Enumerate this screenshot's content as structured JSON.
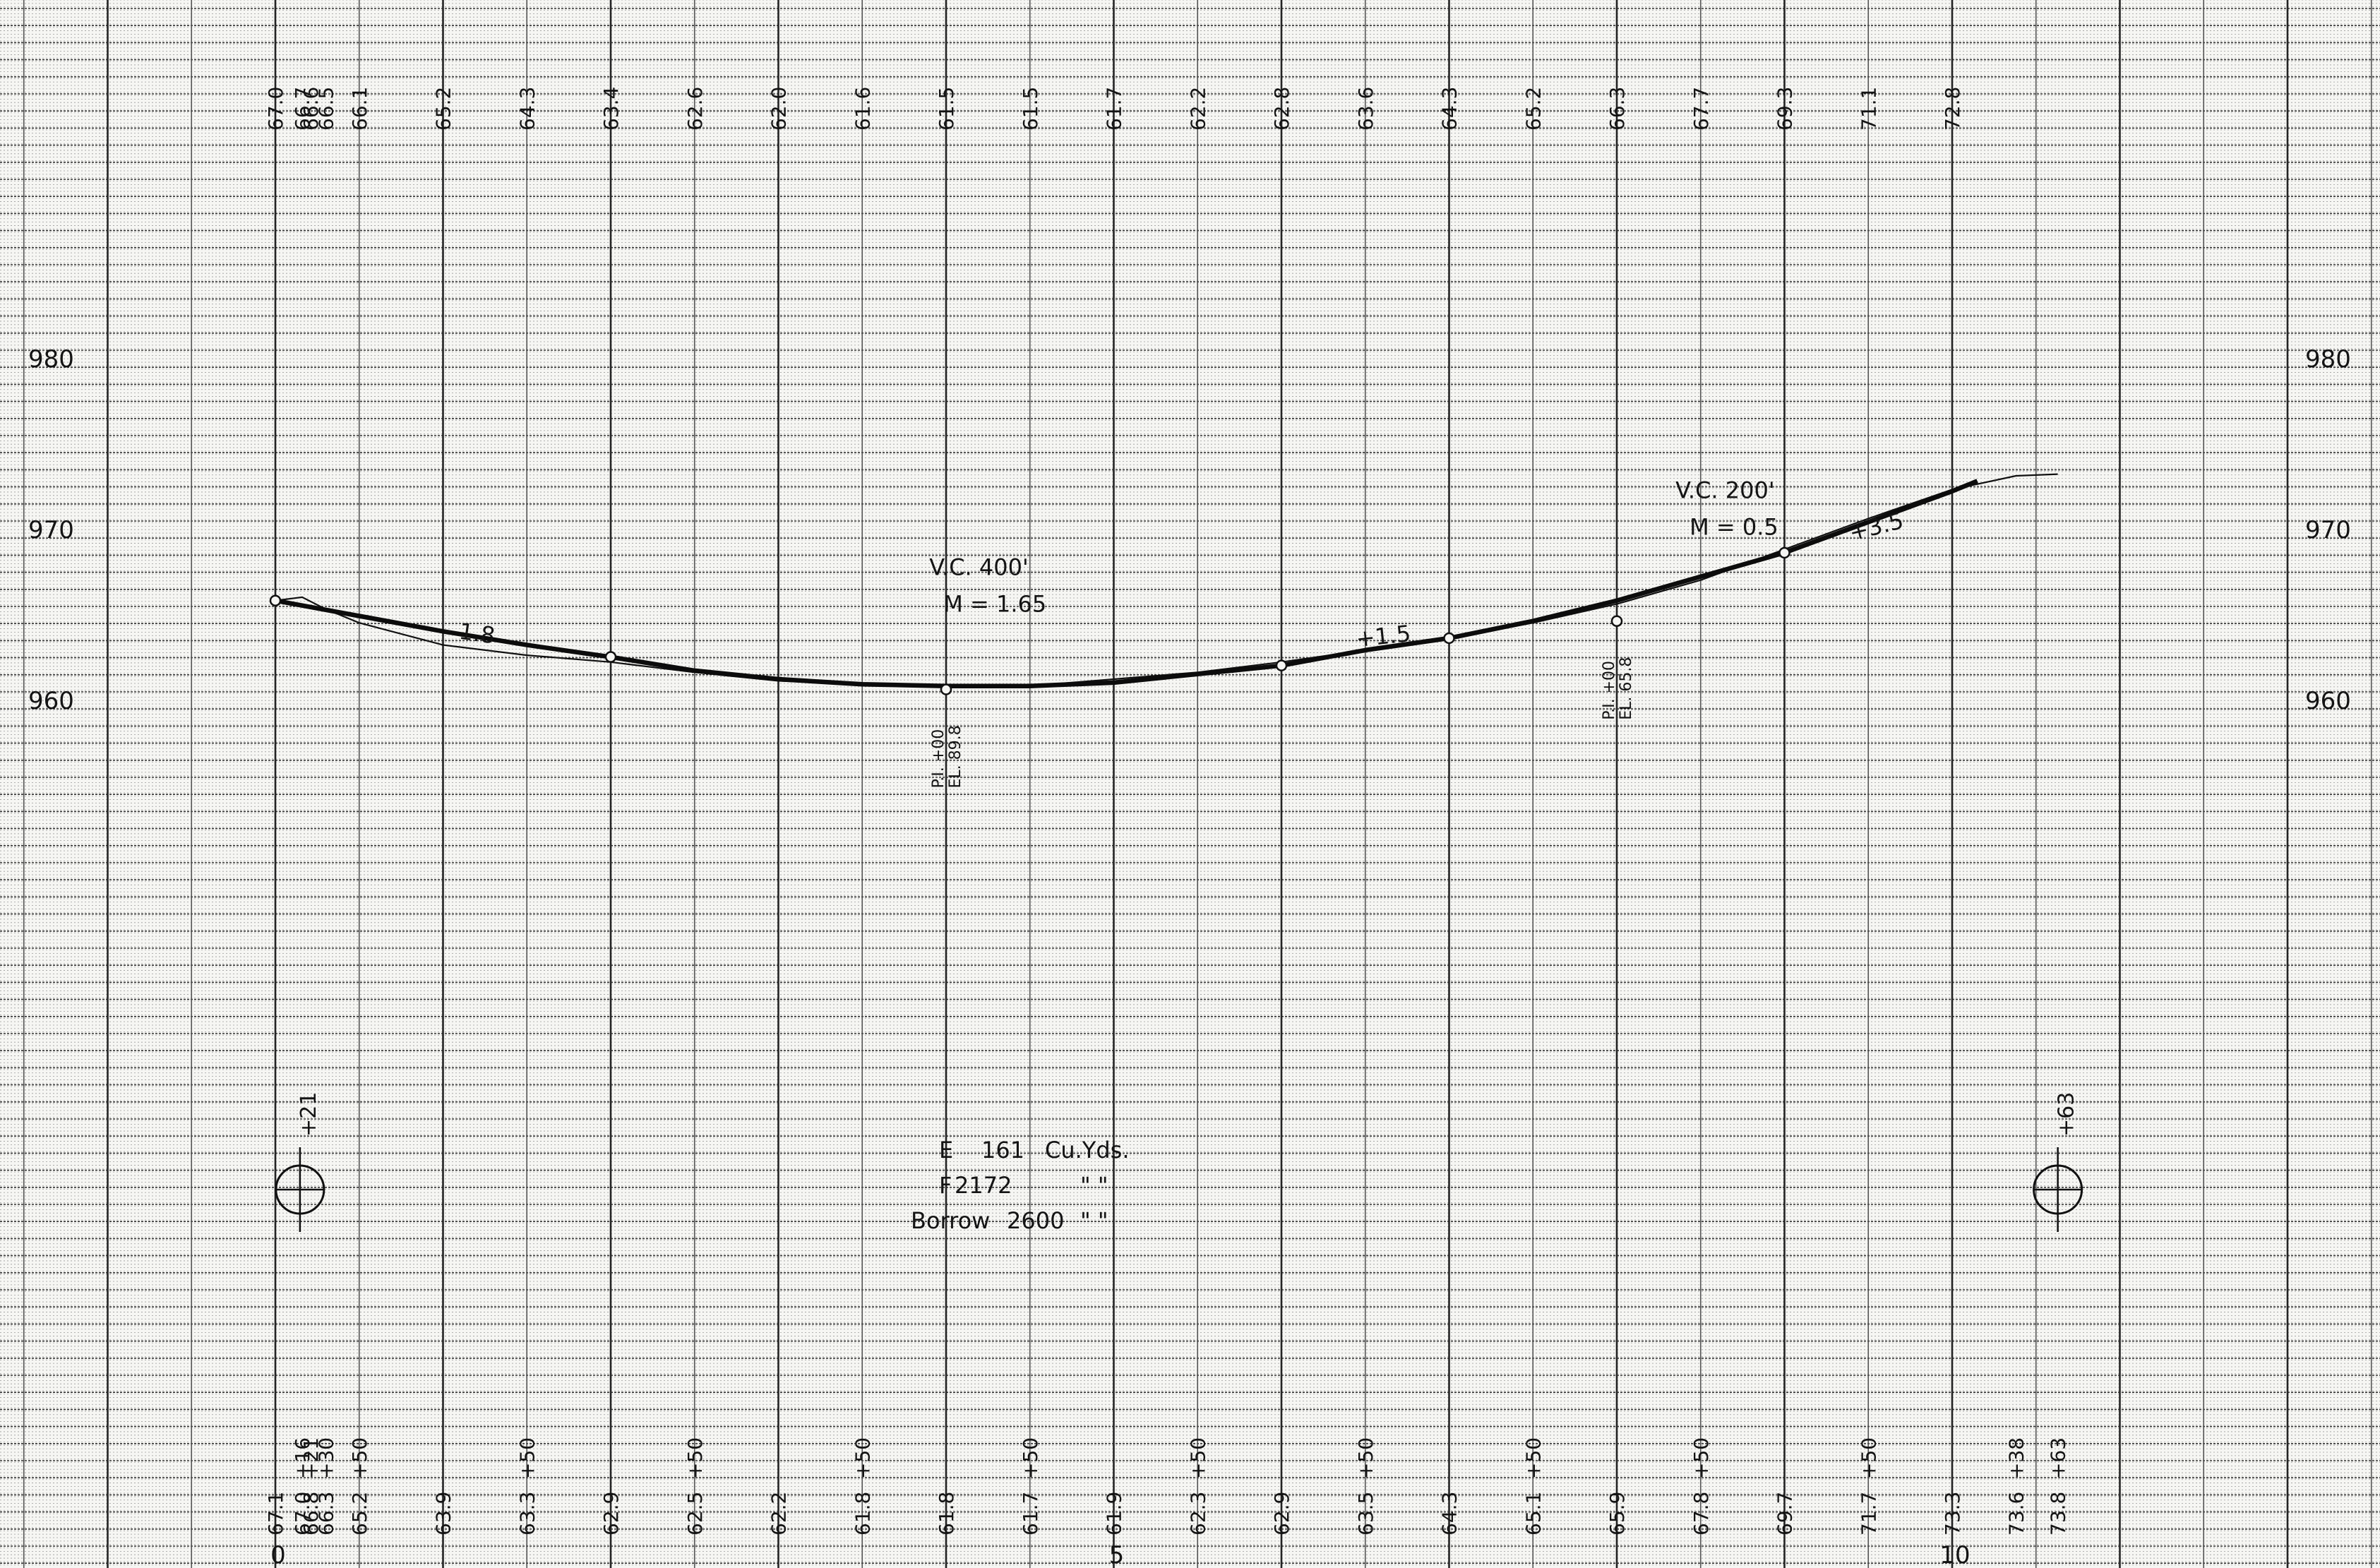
{
  "top_elevations": [
    {
      "station": 0,
      "label": "67.0"
    },
    {
      "station": 16,
      "label": "66.7"
    },
    {
      "station": 21,
      "label": "66.6"
    },
    {
      "station": 30,
      "label": "66.5"
    },
    {
      "station": 50,
      "label": "66.1"
    },
    {
      "station": 100,
      "label": "65.2"
    },
    {
      "station": 150,
      "label": "64.3"
    },
    {
      "station": 200,
      "label": "63.4"
    },
    {
      "station": 250,
      "label": "62.6"
    },
    {
      "station": 300,
      "label": "62.0"
    },
    {
      "station": 350,
      "label": "61.6"
    },
    {
      "station": 400,
      "label": "61.5"
    },
    {
      "station": 450,
      "label": "61.5"
    },
    {
      "station": 500,
      "label": "61.7"
    },
    {
      "station": 550,
      "label": "62.2"
    },
    {
      "station": 600,
      "label": "62.8"
    },
    {
      "station": 650,
      "label": "63.6"
    },
    {
      "station": 700,
      "label": "64.3"
    },
    {
      "station": 750,
      "label": "65.2"
    },
    {
      "station": 800,
      "label": "66.3"
    },
    {
      "station": 850,
      "label": "67.7"
    },
    {
      "station": 900,
      "label": "69.3"
    },
    {
      "station": 950,
      "label": "71.1"
    },
    {
      "station": 1000,
      "label": "72.8"
    }
  ],
  "bottom_elevations": [
    {
      "station": 0,
      "label": "67.1"
    },
    {
      "station": 16,
      "label": "67.0"
    },
    {
      "station": 21,
      "label": "66.8"
    },
    {
      "station": 30,
      "label": "66.3"
    },
    {
      "station": 50,
      "label": "65.2"
    },
    {
      "station": 100,
      "label": "63.9"
    },
    {
      "station": 150,
      "label": "63.3"
    },
    {
      "station": 200,
      "label": "62.9"
    },
    {
      "station": 250,
      "label": "62.5"
    },
    {
      "station": 300,
      "label": "62.2"
    },
    {
      "station": 350,
      "label": "61.8"
    },
    {
      "station": 400,
      "label": "61.8"
    },
    {
      "station": 450,
      "label": "61.7"
    },
    {
      "station": 500,
      "label": "61.9"
    },
    {
      "station": 550,
      "label": "62.3"
    },
    {
      "station": 600,
      "label": "62.9"
    },
    {
      "station": 650,
      "label": "63.5"
    },
    {
      "station": 700,
      "label": "64.3"
    },
    {
      "station": 750,
      "label": "65.1"
    },
    {
      "station": 800,
      "label": "65.9"
    },
    {
      "station": 850,
      "label": "67.8"
    },
    {
      "station": 900,
      "label": "69.7"
    },
    {
      "station": 950,
      "label": "71.7"
    },
    {
      "station": 1000,
      "label": "73.3"
    },
    {
      "station": 1038,
      "label": "73.6"
    },
    {
      "station": 1063,
      "label": "73.8"
    }
  ],
  "bottom_plus_labels": [
    {
      "station": 16,
      "label": "+16"
    },
    {
      "station": 21,
      "label": "+21"
    },
    {
      "station": 30,
      "label": "+30"
    },
    {
      "station": 50,
      "label": "+50"
    },
    {
      "station": 150,
      "label": "+50"
    },
    {
      "station": 250,
      "label": "+50"
    },
    {
      "station": 350,
      "label": "+50"
    },
    {
      "station": 450,
      "label": "+50"
    },
    {
      "station": 550,
      "label": "+50"
    },
    {
      "station": 650,
      "label": "+50"
    },
    {
      "station": 750,
      "label": "+50"
    },
    {
      "station": 850,
      "label": "+50"
    },
    {
      "station": 950,
      "label": "+50"
    },
    {
      "station": 1038,
      "label": "+38"
    },
    {
      "station": 1063,
      "label": "+63"
    }
  ],
  "station_numbers": [
    {
      "station": 0,
      "label": "0"
    },
    {
      "station": 500,
      "label": "5"
    },
    {
      "station": 1000,
      "label": "10"
    }
  ],
  "elevation_axis": [
    {
      "elevation": 980,
      "label": "980"
    },
    {
      "elevation": 970,
      "label": "970"
    },
    {
      "elevation": 960,
      "label": "960"
    }
  ],
  "ground_line": [
    [
      0,
      966.5
    ],
    [
      16,
      966.7
    ],
    [
      30,
      966.0
    ],
    [
      50,
      965.2
    ],
    [
      100,
      963.9
    ],
    [
      150,
      963.3
    ],
    [
      200,
      962.9
    ],
    [
      250,
      962.3
    ],
    [
      300,
      961.8
    ],
    [
      350,
      961.6
    ],
    [
      400,
      961.5
    ],
    [
      450,
      961.5
    ],
    [
      500,
      961.9
    ],
    [
      550,
      962.3
    ],
    [
      600,
      962.9
    ],
    [
      650,
      963.6
    ],
    [
      700,
      964.3
    ],
    [
      750,
      965.2
    ],
    [
      800,
      966.3
    ],
    [
      850,
      967.7
    ],
    [
      900,
      969.5
    ],
    [
      950,
      971.3
    ],
    [
      1000,
      973.0
    ],
    [
      1038,
      973.8
    ],
    [
      1063,
      973.9
    ]
  ],
  "grade_line": [
    [
      0,
      966.5
    ],
    [
      50,
      965.6
    ],
    [
      100,
      964.7
    ],
    [
      150,
      963.9
    ],
    [
      200,
      963.2
    ],
    [
      250,
      962.4
    ],
    [
      300,
      961.9
    ],
    [
      350,
      961.6
    ],
    [
      400,
      961.5
    ],
    [
      450,
      961.5
    ],
    [
      500,
      961.7
    ],
    [
      550,
      962.2
    ],
    [
      600,
      962.7
    ],
    [
      650,
      963.6
    ],
    [
      700,
      964.3
    ],
    [
      750,
      965.3
    ],
    [
      800,
      966.5
    ],
    [
      850,
      967.9
    ],
    [
      900,
      969.3
    ],
    [
      950,
      971.1
    ],
    [
      1000,
      972.9
    ],
    [
      1015,
      973.5
    ]
  ],
  "grade_points": [
    {
      "station": 0,
      "elevation": 966.5
    },
    {
      "station": 200,
      "elevation": 963.2
    },
    {
      "station": 600,
      "elevation": 962.7
    },
    {
      "station": 700,
      "elevation": 964.3
    },
    {
      "station": 900,
      "elevation": 969.3
    }
  ],
  "pi_points": [
    {
      "station": 400,
      "elevation": 961.3,
      "line1": "P.I. +00",
      "line2": "EL. 89.8"
    },
    {
      "station": 800,
      "elevation": 965.3,
      "line1": "P.I. +00",
      "line2": "EL. 65.8"
    }
  ],
  "grades": [
    {
      "label": "- 1.8",
      "station": 100,
      "elevation": 964.4,
      "angle": 8
    },
    {
      "label": "+1.5",
      "station": 645,
      "elevation": 963.8,
      "angle": -6
    },
    {
      "label": "+3.5",
      "station": 940,
      "elevation": 970.0,
      "angle": -14
    }
  ],
  "curves": [
    {
      "title": "V.C. 400'",
      "value": "M = 1.65",
      "station": 390,
      "elevation": 968.0
    },
    {
      "title": "V.C. 200'",
      "value": "M = 0.5",
      "station": 835,
      "elevation": 972.5
    }
  ],
  "earthwork": [
    {
      "name": "E",
      "qty": "161",
      "unit": "Cu.Yds."
    },
    {
      "name": "F",
      "qty": "2172",
      "unit": "\"     \""
    },
    {
      "name": "Borrow",
      "qty": "2600",
      "unit": "\"     \""
    }
  ],
  "structures": [
    {
      "station": 21,
      "label": "+21"
    },
    {
      "station": 1063,
      "label": "+63"
    }
  ]
}
